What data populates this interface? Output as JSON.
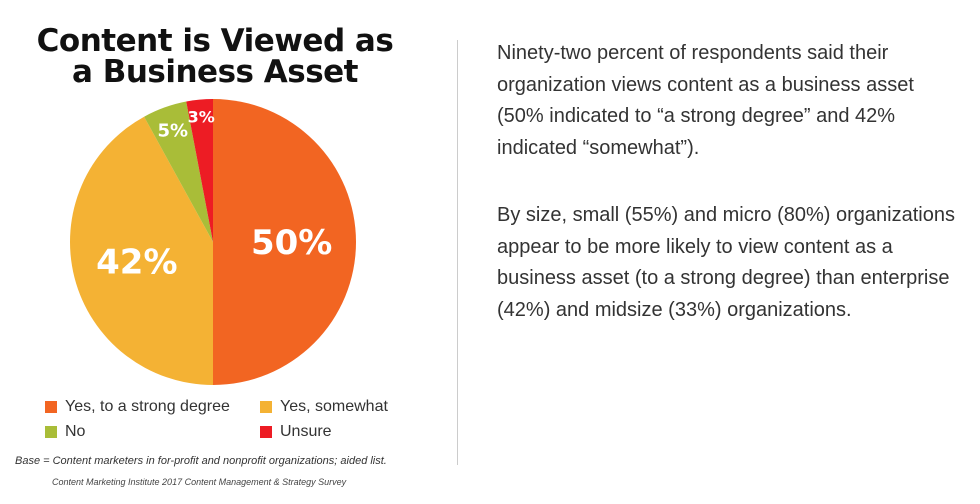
{
  "chart_data": {
    "type": "pie",
    "title": "Content is Viewed as a Business Asset",
    "title_lines": [
      "Content is Viewed as",
      "a Business Asset"
    ],
    "slices": [
      {
        "name": "Yes, to a strong degree",
        "value": 50,
        "label": "50%",
        "color": "#F26522"
      },
      {
        "name": "Yes, somewhat",
        "value": 42,
        "label": "42%",
        "color": "#F4B234"
      },
      {
        "name": "No",
        "value": 5,
        "label": "5%",
        "color": "#A9BD38"
      },
      {
        "name": "Unsure",
        "value": 3,
        "label": "3%",
        "color": "#ED1C24"
      }
    ],
    "legend_placement": "bottom"
  },
  "footnote": "Base = Content marketers in for-profit and nonprofit organizations; aided list.",
  "source": "Content Marketing Institute 2017 Content Management & Strategy Survey",
  "paragraphs": [
    "Ninety-two percent of respondents said their organization views content as a business asset (50% indicated to “a strong degree” and 42% indicated “somewhat”).",
    "By size, small (55%) and micro (80%) organizations appear to be more likely to view content as a business asset (to a strong degree) than enterprise (42%) and midsize (33%) organizations."
  ]
}
